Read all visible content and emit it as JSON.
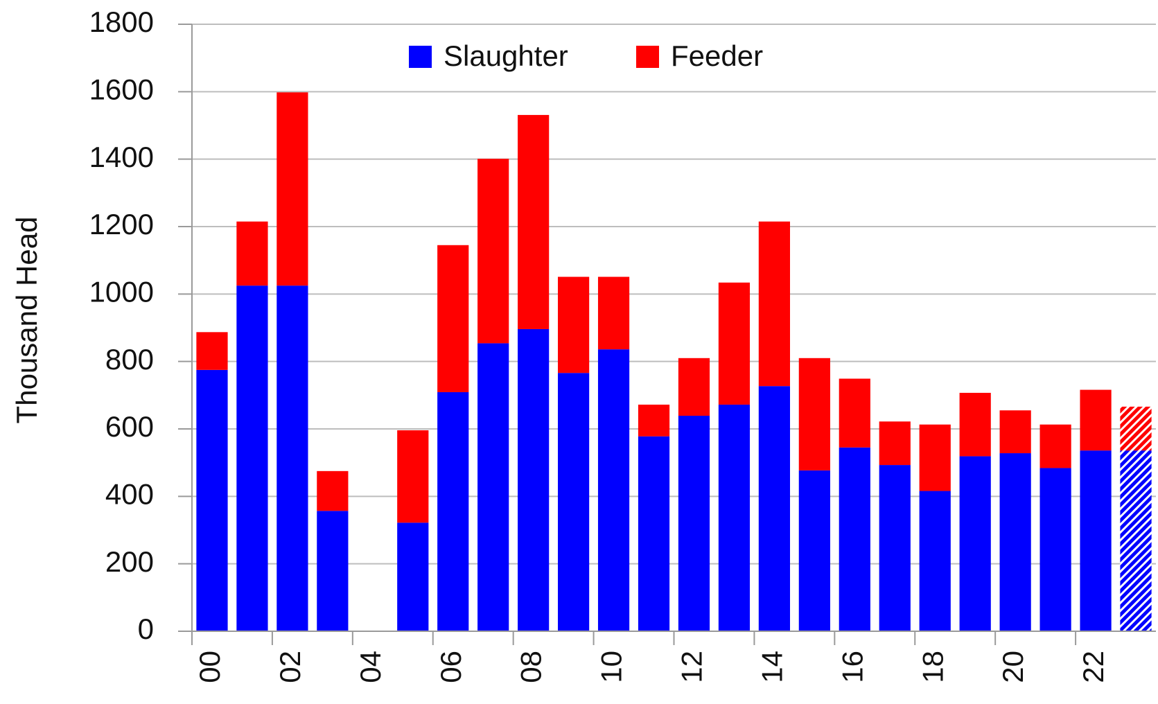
{
  "chart_data": {
    "type": "bar",
    "stacked": true,
    "y_label": "Thousand Head",
    "categories": [
      "00",
      null,
      "02",
      null,
      "04",
      null,
      "06",
      null,
      "08",
      null,
      "10",
      null,
      "12",
      null,
      "14",
      null,
      "16",
      null,
      "18",
      null,
      "20",
      null,
      "22",
      null
    ],
    "series": [
      {
        "name": "Slaughter",
        "color": "#0000ff",
        "values": [
          775,
          1025,
          1025,
          357,
          null,
          322,
          709,
          854,
          896,
          766,
          836,
          578,
          639,
          672,
          727,
          477,
          545,
          493,
          416,
          519,
          528,
          484,
          536,
          536
        ]
      },
      {
        "name": "Feeder",
        "color": "#ff0000",
        "values": [
          112,
          190,
          573,
          118,
          null,
          274,
          436,
          547,
          635,
          285,
          215,
          94,
          171,
          362,
          488,
          333,
          204,
          129,
          197,
          188,
          127,
          129,
          180,
          130
        ]
      }
    ],
    "hatched": [
      23
    ],
    "ylim": [
      0,
      1800
    ],
    "yticks": [
      0,
      200,
      400,
      600,
      800,
      1000,
      1200,
      1400,
      1600,
      1800
    ],
    "grid": true,
    "legend": "top"
  }
}
